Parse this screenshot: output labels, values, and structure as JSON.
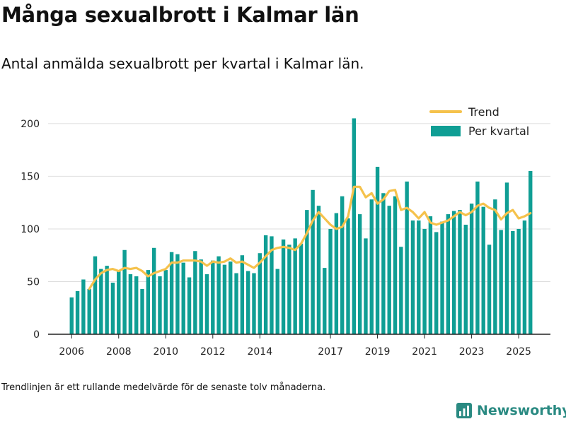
{
  "title": "Många sexualbrott i Kalmar län",
  "subtitle": "Antal anmälda sexualbrott per kvartal i Kalmar län.",
  "footnote": "Trendlinjen är ett rullande medelvärde för de senaste tolv månaderna.",
  "brand": {
    "name": "Newsworthy",
    "icon": "newsworthy-chart-logo-icon"
  },
  "colors": {
    "bar": "#0f9e94",
    "trend": "#f5c24c",
    "grid": "#dddddd",
    "axis": "#222222",
    "brand": "#2a8a82"
  },
  "chart_data": {
    "type": "bar",
    "x_start": 2006.0,
    "x_step": 0.25,
    "xlim": [
      2005.0,
      2026.35
    ],
    "ylim": [
      0,
      210
    ],
    "yticks": [
      0,
      50,
      100,
      150,
      200
    ],
    "xticks": [
      2006,
      2008,
      2010,
      2012,
      2014,
      2017,
      2019,
      2021,
      2023,
      2025
    ],
    "grid": true,
    "legend_position": "top-right",
    "series": [
      {
        "name": "Per kvartal",
        "type": "bar",
        "values": [
          35,
          41,
          52,
          43,
          74,
          62,
          65,
          49,
          60,
          80,
          57,
          55,
          43,
          61,
          82,
          55,
          61,
          78,
          76,
          68,
          54,
          79,
          71,
          57,
          70,
          74,
          66,
          69,
          58,
          75,
          60,
          58,
          77,
          94,
          93,
          62,
          90,
          85,
          91,
          86,
          118,
          137,
          122,
          63,
          100,
          115,
          131,
          110,
          205,
          114,
          91,
          128,
          159,
          134,
          122,
          131,
          83,
          145,
          108,
          108,
          100,
          112,
          97,
          107,
          114,
          117,
          118,
          104,
          124,
          145,
          121,
          85,
          128,
          99,
          144,
          98,
          100,
          108,
          155
        ]
      },
      {
        "name": "Trend",
        "type": "line",
        "values": [
          null,
          null,
          null,
          43,
          52,
          58,
          61,
          62,
          60,
          63,
          62,
          63,
          60,
          55,
          58,
          60,
          62,
          68,
          68,
          70,
          70,
          70,
          69,
          65,
          69,
          68,
          69,
          72,
          68,
          69,
          66,
          63,
          68,
          74,
          80,
          82,
          83,
          82,
          80,
          86,
          96,
          108,
          116,
          110,
          104,
          100,
          102,
          112,
          140,
          140,
          130,
          134,
          124,
          128,
          136,
          137,
          118,
          120,
          116,
          110,
          116,
          106,
          104,
          106,
          108,
          112,
          116,
          113,
          116,
          122,
          124,
          120,
          118,
          109,
          115,
          118,
          110,
          112,
          115
        ]
      }
    ]
  }
}
